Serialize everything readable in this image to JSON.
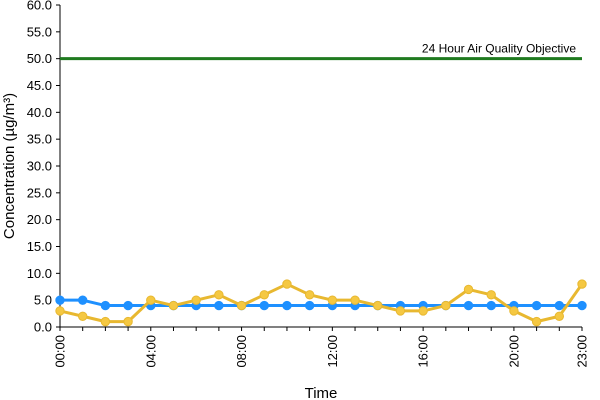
{
  "chart_data": {
    "type": "line",
    "xlabel": "Time",
    "ylabel": "Concentration (µg/m³)",
    "ylim": [
      0,
      60
    ],
    "y_ticks": [
      "0.0",
      "5.0",
      "10.0",
      "15.0",
      "20.0",
      "25.0",
      "30.0",
      "35.0",
      "40.0",
      "45.0",
      "50.0",
      "55.0",
      "60.0"
    ],
    "x_tick_labels": [
      "00:00",
      "04:00",
      "08:00",
      "12:00",
      "16:00",
      "20:00",
      "23:00"
    ],
    "x_tick_hours": [
      0,
      4,
      8,
      12,
      16,
      20,
      23
    ],
    "x": [
      0,
      1,
      2,
      3,
      4,
      5,
      6,
      7,
      8,
      9,
      10,
      11,
      12,
      13,
      14,
      15,
      16,
      17,
      18,
      19,
      20,
      21,
      22,
      23
    ],
    "grid": false,
    "series": [
      {
        "color": "#1e90ff",
        "marker_color": "#1e90ff",
        "values": [
          5,
          5,
          4,
          4,
          4,
          4,
          4,
          4,
          4,
          4,
          4,
          4,
          4,
          4,
          4,
          4,
          4,
          4,
          4,
          4,
          4,
          4,
          4,
          4
        ]
      },
      {
        "color": "#e8b830",
        "marker_color": "#f5c842",
        "values": [
          3,
          2,
          1,
          1,
          5,
          4,
          5,
          6,
          4,
          6,
          8,
          6,
          5,
          5,
          4,
          3,
          3,
          4,
          7,
          6,
          3,
          1,
          2,
          8
        ]
      }
    ],
    "reference_line": {
      "label": "24 Hour Air Quality Objective",
      "value": 50,
      "color": "#1f7a1f"
    }
  }
}
